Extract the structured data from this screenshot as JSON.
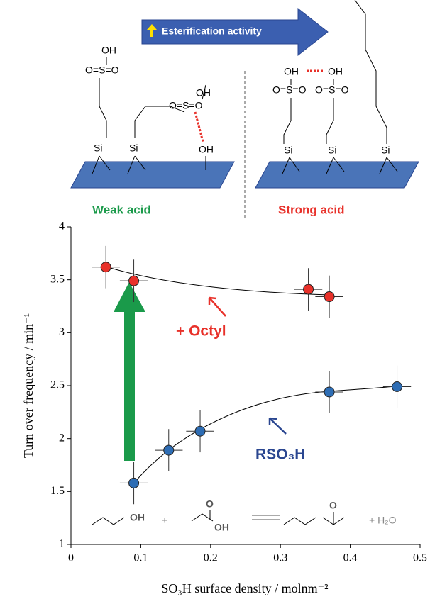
{
  "diagram": {
    "banner": "Esterification activity",
    "weak": "Weak acid",
    "strong": "Strong acid",
    "labels": [
      "OH",
      "O=S=O",
      "Si",
      "Si",
      "OH",
      "O=S=O",
      "OH",
      "OH",
      "OH",
      "O=S=O",
      "O=S=O",
      "Si",
      "Si",
      "Si"
    ],
    "reaction": [
      "OH",
      "+",
      "O",
      "OH",
      "O",
      "+ H₂O"
    ]
  },
  "chart_data": {
    "type": "scatter",
    "xlabel": "SO₃H surface density / molnm⁻²",
    "ylabel": "Turn over frequency  / min⁻¹",
    "xlim": [
      0,
      0.5
    ],
    "ylim": [
      1,
      4
    ],
    "xticks": [
      0,
      0.1,
      0.2,
      0.3,
      0.4,
      0.5
    ],
    "yticks": [
      1,
      1.5,
      2,
      2.5,
      3,
      3.5,
      4
    ],
    "series": [
      {
        "name": "+ Octyl",
        "color": "#e8312a",
        "x": [
          0.05,
          0.09,
          0.34,
          0.37
        ],
        "values": [
          3.62,
          3.49,
          3.41,
          3.34
        ],
        "xerr": [
          0.02,
          0.02,
          0.02,
          0.02
        ],
        "yerr": [
          0.2,
          0.2,
          0.2,
          0.2
        ]
      },
      {
        "name": "RSO₃H",
        "color": "#2e6db4",
        "x": [
          0.09,
          0.14,
          0.185,
          0.37,
          0.467
        ],
        "values": [
          1.58,
          1.89,
          2.07,
          2.44,
          2.49
        ],
        "xerr": [
          0.02,
          0.02,
          0.02,
          0.02,
          0.02
        ],
        "yerr": [
          0.2,
          0.2,
          0.2,
          0.2,
          0.2
        ]
      }
    ]
  }
}
